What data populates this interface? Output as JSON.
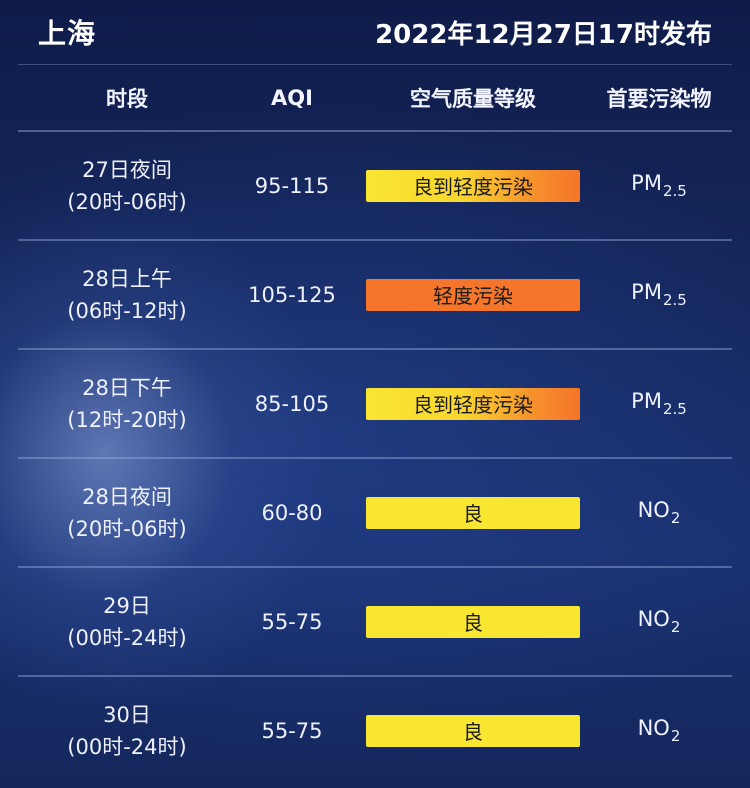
{
  "header": {
    "city": "上海",
    "published": "2022年12月27日17时发布"
  },
  "table": {
    "columns": [
      "时段",
      "AQI",
      "空气质量等级",
      "首要污染物"
    ],
    "rows": [
      {
        "day": "27日夜间",
        "range": "(20时-06时)",
        "aqi": "95-115",
        "level": "良到轻度污染",
        "pollutant_main": "PM",
        "pollutant_sub": "2.5"
      },
      {
        "day": "28日上午",
        "range": "(06时-12时)",
        "aqi": "105-125",
        "level": "轻度污染",
        "pollutant_main": "PM",
        "pollutant_sub": "2.5"
      },
      {
        "day": "28日下午",
        "range": "(12时-20时)",
        "aqi": "85-105",
        "level": "良到轻度污染",
        "pollutant_main": "PM",
        "pollutant_sub": "2.5"
      },
      {
        "day": "28日夜间",
        "range": "(20时-06时)",
        "aqi": "60-80",
        "level": "良",
        "pollutant_main": "NO",
        "pollutant_sub": "2"
      },
      {
        "day": "29日",
        "range": "(00时-24时)",
        "aqi": "55-75",
        "level": "良",
        "pollutant_main": "NO",
        "pollutant_sub": "2"
      },
      {
        "day": "30日",
        "range": "(00时-24时)",
        "aqi": "55-75",
        "level": "良",
        "pollutant_main": "NO",
        "pollutant_sub": "2"
      }
    ]
  },
  "level_colors": {
    "良": "#f9e631",
    "轻度污染": "#f5752a",
    "良到轻度污染": "linear-gradient(90deg, #f9e631 0%, #f9d630 45%, #f6912c 78%, #f5752a 100%)"
  }
}
